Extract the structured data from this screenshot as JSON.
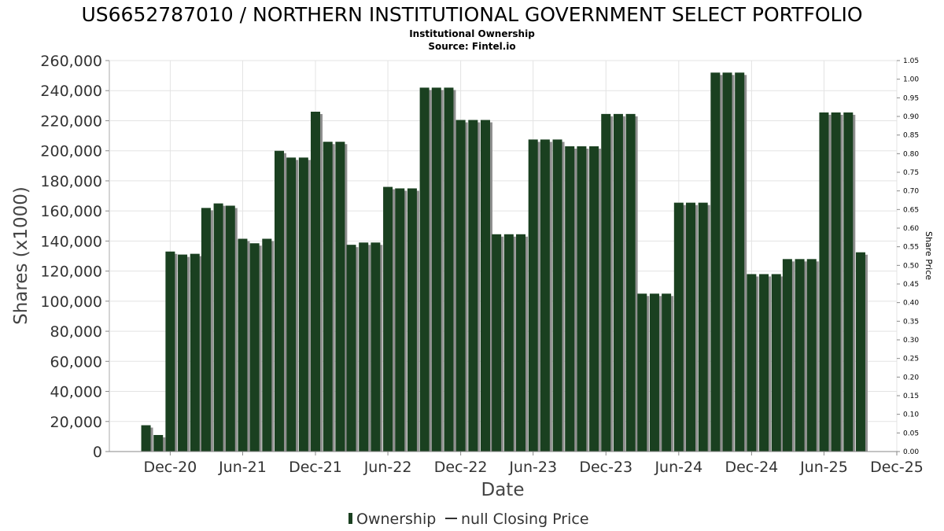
{
  "chart_data": {
    "type": "bar",
    "title": "US6652787010 / NORTHERN INSTITUTIONAL GOVERNMENT SELECT PORTFOLIO",
    "subtitle_lines": [
      "Institutional Ownership",
      "Source: Fintel.io"
    ],
    "xlabel": "Date",
    "ylabel": "Shares (x1000)",
    "y2label": "Share Price",
    "ylim": [
      0,
      260000
    ],
    "y2lim": [
      0,
      1.05
    ],
    "x_range": [
      "2020-07-01",
      "2025-12-01"
    ],
    "yticks": [
      0,
      20000,
      40000,
      60000,
      80000,
      100000,
      120000,
      140000,
      160000,
      180000,
      200000,
      220000,
      240000,
      260000
    ],
    "ytick_labels": [
      "0",
      "20,000",
      "40,000",
      "60,000",
      "80,000",
      "100,000",
      "120,000",
      "140,000",
      "160,000",
      "180,000",
      "200,000",
      "220,000",
      "240,000",
      "260,000"
    ],
    "y2ticks": [
      0,
      0.05,
      0.1,
      0.15,
      0.2,
      0.25,
      0.3,
      0.35,
      0.4,
      0.45,
      0.5,
      0.55,
      0.6,
      0.65,
      0.7,
      0.75,
      0.8,
      0.85,
      0.9,
      0.95,
      1.0,
      1.05
    ],
    "y2tick_labels": [
      "0.00",
      "0.05",
      "0.10",
      "0.15",
      "0.20",
      "0.25",
      "0.30",
      "0.35",
      "0.40",
      "0.45",
      "0.50",
      "0.55",
      "0.60",
      "0.65",
      "0.70",
      "0.75",
      "0.80",
      "0.85",
      "0.90",
      "0.95",
      "1.00",
      "1.05"
    ],
    "xticks": [
      {
        "label": "Dec-20",
        "date": "2020-12-01"
      },
      {
        "label": "Jun-21",
        "date": "2021-06-01"
      },
      {
        "label": "Dec-21",
        "date": "2021-12-01"
      },
      {
        "label": "Jun-22",
        "date": "2022-06-01"
      },
      {
        "label": "Dec-22",
        "date": "2022-12-01"
      },
      {
        "label": "Jun-23",
        "date": "2023-06-01"
      },
      {
        "label": "Dec-23",
        "date": "2023-12-01"
      },
      {
        "label": "Jun-24",
        "date": "2024-06-01"
      },
      {
        "label": "Dec-24",
        "date": "2024-12-01"
      },
      {
        "label": "Jun-25",
        "date": "2025-06-01"
      },
      {
        "label": "Dec-25",
        "date": "2025-12-01"
      }
    ],
    "series": [
      {
        "name": "Ownership",
        "color": "#1a4020",
        "x": [
          "2020-10-01",
          "2020-11-01",
          "2020-12-01",
          "2021-01-01",
          "2021-02-01",
          "2021-03-01",
          "2021-04-01",
          "2021-05-01",
          "2021-06-01",
          "2021-07-01",
          "2021-08-01",
          "2021-09-01",
          "2021-10-01",
          "2021-11-01",
          "2021-12-01",
          "2022-01-01",
          "2022-02-01",
          "2022-03-01",
          "2022-04-01",
          "2022-05-01",
          "2022-06-01",
          "2022-07-01",
          "2022-08-01",
          "2022-09-01",
          "2022-10-01",
          "2022-11-01",
          "2022-12-01",
          "2023-01-01",
          "2023-02-01",
          "2023-03-01",
          "2023-04-01",
          "2023-05-01",
          "2023-06-01",
          "2023-07-01",
          "2023-08-01",
          "2023-09-01",
          "2023-10-01",
          "2023-11-01",
          "2023-12-01",
          "2024-01-01",
          "2024-02-01",
          "2024-03-01",
          "2024-04-01",
          "2024-05-01",
          "2024-06-01",
          "2024-07-01",
          "2024-08-01",
          "2024-09-01",
          "2024-10-01",
          "2024-11-01",
          "2024-12-01",
          "2025-01-01",
          "2025-02-01",
          "2025-03-01",
          "2025-04-01",
          "2025-05-01",
          "2025-06-01",
          "2025-07-01",
          "2025-08-01",
          "2025-09-01"
        ],
        "values": [
          17500,
          11000,
          133000,
          131000,
          131500,
          162000,
          165000,
          163500,
          141500,
          138500,
          141500,
          200000,
          195500,
          195500,
          226000,
          206000,
          206000,
          137500,
          139000,
          139000,
          176000,
          175000,
          175000,
          242000,
          242000,
          242000,
          220500,
          220500,
          220500,
          144500,
          144500,
          144500,
          207500,
          207500,
          207500,
          203000,
          203000,
          203000,
          224500,
          224500,
          224500,
          105000,
          105000,
          105000,
          165500,
          165500,
          165500,
          252000,
          252000,
          252000,
          118000,
          118000,
          118000,
          128000,
          128000,
          128000,
          225500,
          225500,
          225500,
          132500
        ]
      },
      {
        "name": "null Closing Price",
        "color": "#000000",
        "values": []
      }
    ],
    "legend_position": "bottom-center",
    "grid": true
  }
}
